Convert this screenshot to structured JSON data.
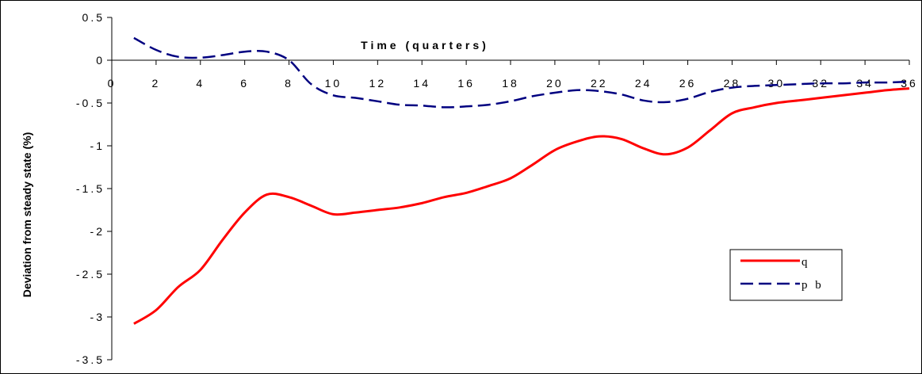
{
  "chart_data": {
    "type": "line",
    "title": "",
    "xlabel": "Time (quarters)",
    "ylabel": "Deviation from steady state (%)",
    "xlim": [
      0,
      36
    ],
    "ylim": [
      -3.5,
      0.5
    ],
    "x_ticks": [
      0,
      2,
      4,
      6,
      8,
      10,
      12,
      14,
      16,
      18,
      20,
      22,
      24,
      26,
      28,
      30,
      32,
      34,
      36
    ],
    "y_ticks": [
      0.5,
      0,
      -0.5,
      -1,
      -1.5,
      -2,
      -2.5,
      -3,
      -3.5
    ],
    "y_tick_labels": [
      "0.5",
      "0",
      "-0.5",
      "-1",
      "-1.5",
      "-2",
      "-2.5",
      "-3",
      "-3.5"
    ],
    "grid": false,
    "legend_position": "lower-right",
    "series": [
      {
        "name": "q",
        "color": "#ff0000",
        "style": "solid",
        "x": [
          1,
          2,
          3,
          4,
          5,
          6,
          7,
          8,
          9,
          10,
          11,
          12,
          13,
          14,
          15,
          16,
          17,
          18,
          19,
          20,
          21,
          22,
          23,
          24,
          25,
          26,
          27,
          28,
          29,
          30,
          31,
          32,
          33,
          34,
          35,
          36
        ],
        "y": [
          -3.08,
          -2.92,
          -2.65,
          -2.45,
          -2.1,
          -1.78,
          -1.57,
          -1.6,
          -1.7,
          -1.8,
          -1.78,
          -1.75,
          -1.72,
          -1.67,
          -1.6,
          -1.55,
          -1.47,
          -1.38,
          -1.22,
          -1.05,
          -0.95,
          -0.89,
          -0.92,
          -1.03,
          -1.1,
          -1.02,
          -0.82,
          -0.62,
          -0.55,
          -0.5,
          -0.47,
          -0.44,
          -0.41,
          -0.38,
          -0.35,
          -0.33
        ]
      },
      {
        "name": "p b",
        "color": "#000080",
        "style": "dashed",
        "x": [
          1,
          2,
          3,
          4,
          5,
          6,
          7,
          8,
          9,
          10,
          11,
          12,
          13,
          14,
          15,
          16,
          17,
          18,
          19,
          20,
          21,
          22,
          23,
          24,
          25,
          26,
          27,
          28,
          29,
          30,
          31,
          32,
          33,
          34,
          35,
          36
        ],
        "y": [
          0.26,
          0.12,
          0.04,
          0.03,
          0.06,
          0.1,
          0.1,
          0.0,
          -0.28,
          -0.41,
          -0.44,
          -0.48,
          -0.52,
          -0.53,
          -0.55,
          -0.54,
          -0.52,
          -0.48,
          -0.42,
          -0.38,
          -0.35,
          -0.36,
          -0.4,
          -0.47,
          -0.49,
          -0.45,
          -0.37,
          -0.32,
          -0.3,
          -0.29,
          -0.28,
          -0.27,
          -0.27,
          -0.26,
          -0.26,
          -0.25
        ]
      }
    ]
  }
}
